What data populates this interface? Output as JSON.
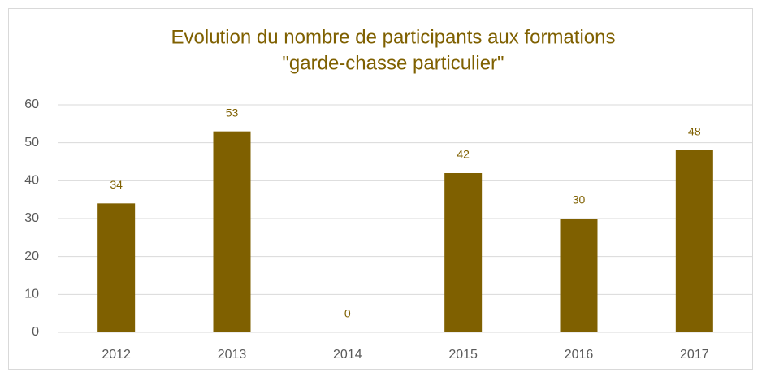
{
  "chart_data": {
    "type": "bar",
    "title": [
      "Evolution du nombre de participants aux formations",
      "\"garde-chasse particulier\""
    ],
    "categories": [
      "2012",
      "2013",
      "2014",
      "2015",
      "2016",
      "2017"
    ],
    "values": [
      34,
      53,
      0,
      42,
      30,
      48
    ],
    "color": "#7f6000",
    "ylim": [
      0,
      60
    ],
    "yticks": [
      0,
      10,
      20,
      30,
      40,
      50,
      60
    ],
    "grid": true
  }
}
